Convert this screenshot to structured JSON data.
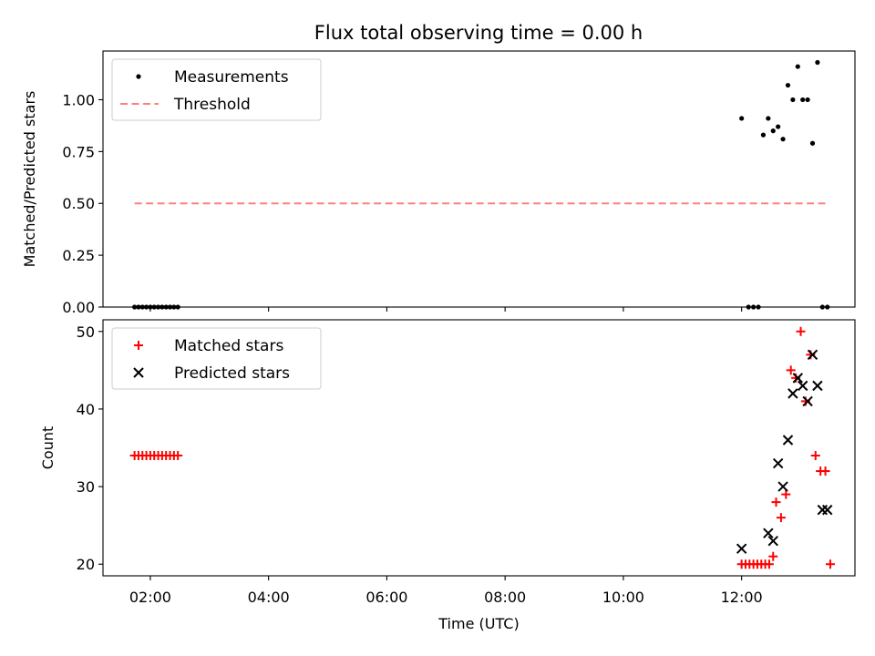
{
  "title": "Flux total observing time = 0.00 h",
  "chart_data": [
    {
      "type": "scatter",
      "ylabel": "Matched/Predicted stars",
      "ylim": [
        0,
        1.235
      ],
      "xlim": [
        "01:12",
        "13:55"
      ],
      "yticks": [
        0.0,
        0.25,
        0.5,
        0.75,
        1.0
      ],
      "ytick_labels": [
        "0.00",
        "0.25",
        "0.50",
        "0.75",
        "1.00"
      ],
      "legend_position": "upper-left",
      "grid": false,
      "series": [
        {
          "name": "Measurements",
          "kind": "scatter",
          "marker": "dot",
          "color": "#000000",
          "x": [
            "01:44",
            "01:48",
            "01:52",
            "01:56",
            "02:00",
            "02:04",
            "02:08",
            "02:12",
            "02:16",
            "02:20",
            "02:24",
            "02:28",
            "12:00",
            "12:07",
            "12:12",
            "12:17",
            "12:22",
            "12:27",
            "12:32",
            "12:37",
            "12:42",
            "12:47",
            "12:52",
            "12:57",
            "13:02",
            "13:07",
            "13:12",
            "13:17",
            "13:22",
            "13:27"
          ],
          "y": [
            0,
            0,
            0,
            0,
            0,
            0,
            0,
            0,
            0,
            0,
            0,
            0,
            0.91,
            0,
            0,
            0,
            0.83,
            0.91,
            0.85,
            0.87,
            0.81,
            1.07,
            1.0,
            1.16,
            1.0,
            1.0,
            0.79,
            1.18,
            0,
            0
          ]
        },
        {
          "name": "Threshold",
          "kind": "line",
          "style": "dashed",
          "color": "#ff7f7f",
          "x": [
            "01:44",
            "13:25"
          ],
          "y": [
            0.5,
            0.5
          ]
        }
      ]
    },
    {
      "type": "scatter",
      "ylabel": "Count",
      "xlabel": "Time (UTC)",
      "ylim": [
        18.5,
        51.5
      ],
      "xlim": [
        "01:12",
        "13:55"
      ],
      "yticks": [
        20,
        30,
        40,
        50
      ],
      "ytick_labels": [
        "20",
        "30",
        "40",
        "50"
      ],
      "xticks": [
        "02:00",
        "04:00",
        "06:00",
        "08:00",
        "10:00",
        "12:00"
      ],
      "xtick_labels": [
        "02:00",
        "04:00",
        "06:00",
        "08:00",
        "10:00",
        "12:00"
      ],
      "legend_position": "upper-left",
      "grid": false,
      "series": [
        {
          "name": "Matched stars",
          "kind": "scatter",
          "marker": "plus",
          "color": "#ff0000",
          "x": [
            "01:44",
            "01:48",
            "01:52",
            "01:56",
            "02:00",
            "02:04",
            "02:08",
            "02:12",
            "02:16",
            "02:20",
            "02:24",
            "02:28",
            "12:00",
            "12:04",
            "12:08",
            "12:12",
            "12:16",
            "12:20",
            "12:24",
            "12:28",
            "12:32",
            "12:35",
            "12:40",
            "12:45",
            "12:50",
            "12:55",
            "13:00",
            "13:05",
            "13:10",
            "13:15",
            "13:20",
            "13:25",
            "13:30"
          ],
          "y": [
            34,
            34,
            34,
            34,
            34,
            34,
            34,
            34,
            34,
            34,
            34,
            34,
            20,
            20,
            20,
            20,
            20,
            20,
            20,
            20,
            21,
            28,
            26,
            29,
            45,
            44,
            50,
            41,
            47,
            34,
            32,
            32,
            20
          ]
        },
        {
          "name": "Predicted stars",
          "kind": "scatter",
          "marker": "x",
          "color": "#000000",
          "x": [
            "12:00",
            "12:27",
            "12:32",
            "12:37",
            "12:42",
            "12:47",
            "12:52",
            "12:57",
            "13:02",
            "13:07",
            "13:12",
            "13:17",
            "13:22",
            "13:27"
          ],
          "y": [
            22,
            24,
            23,
            33,
            30,
            36,
            42,
            44,
            43,
            41,
            47,
            43,
            27,
            27
          ]
        }
      ]
    }
  ]
}
